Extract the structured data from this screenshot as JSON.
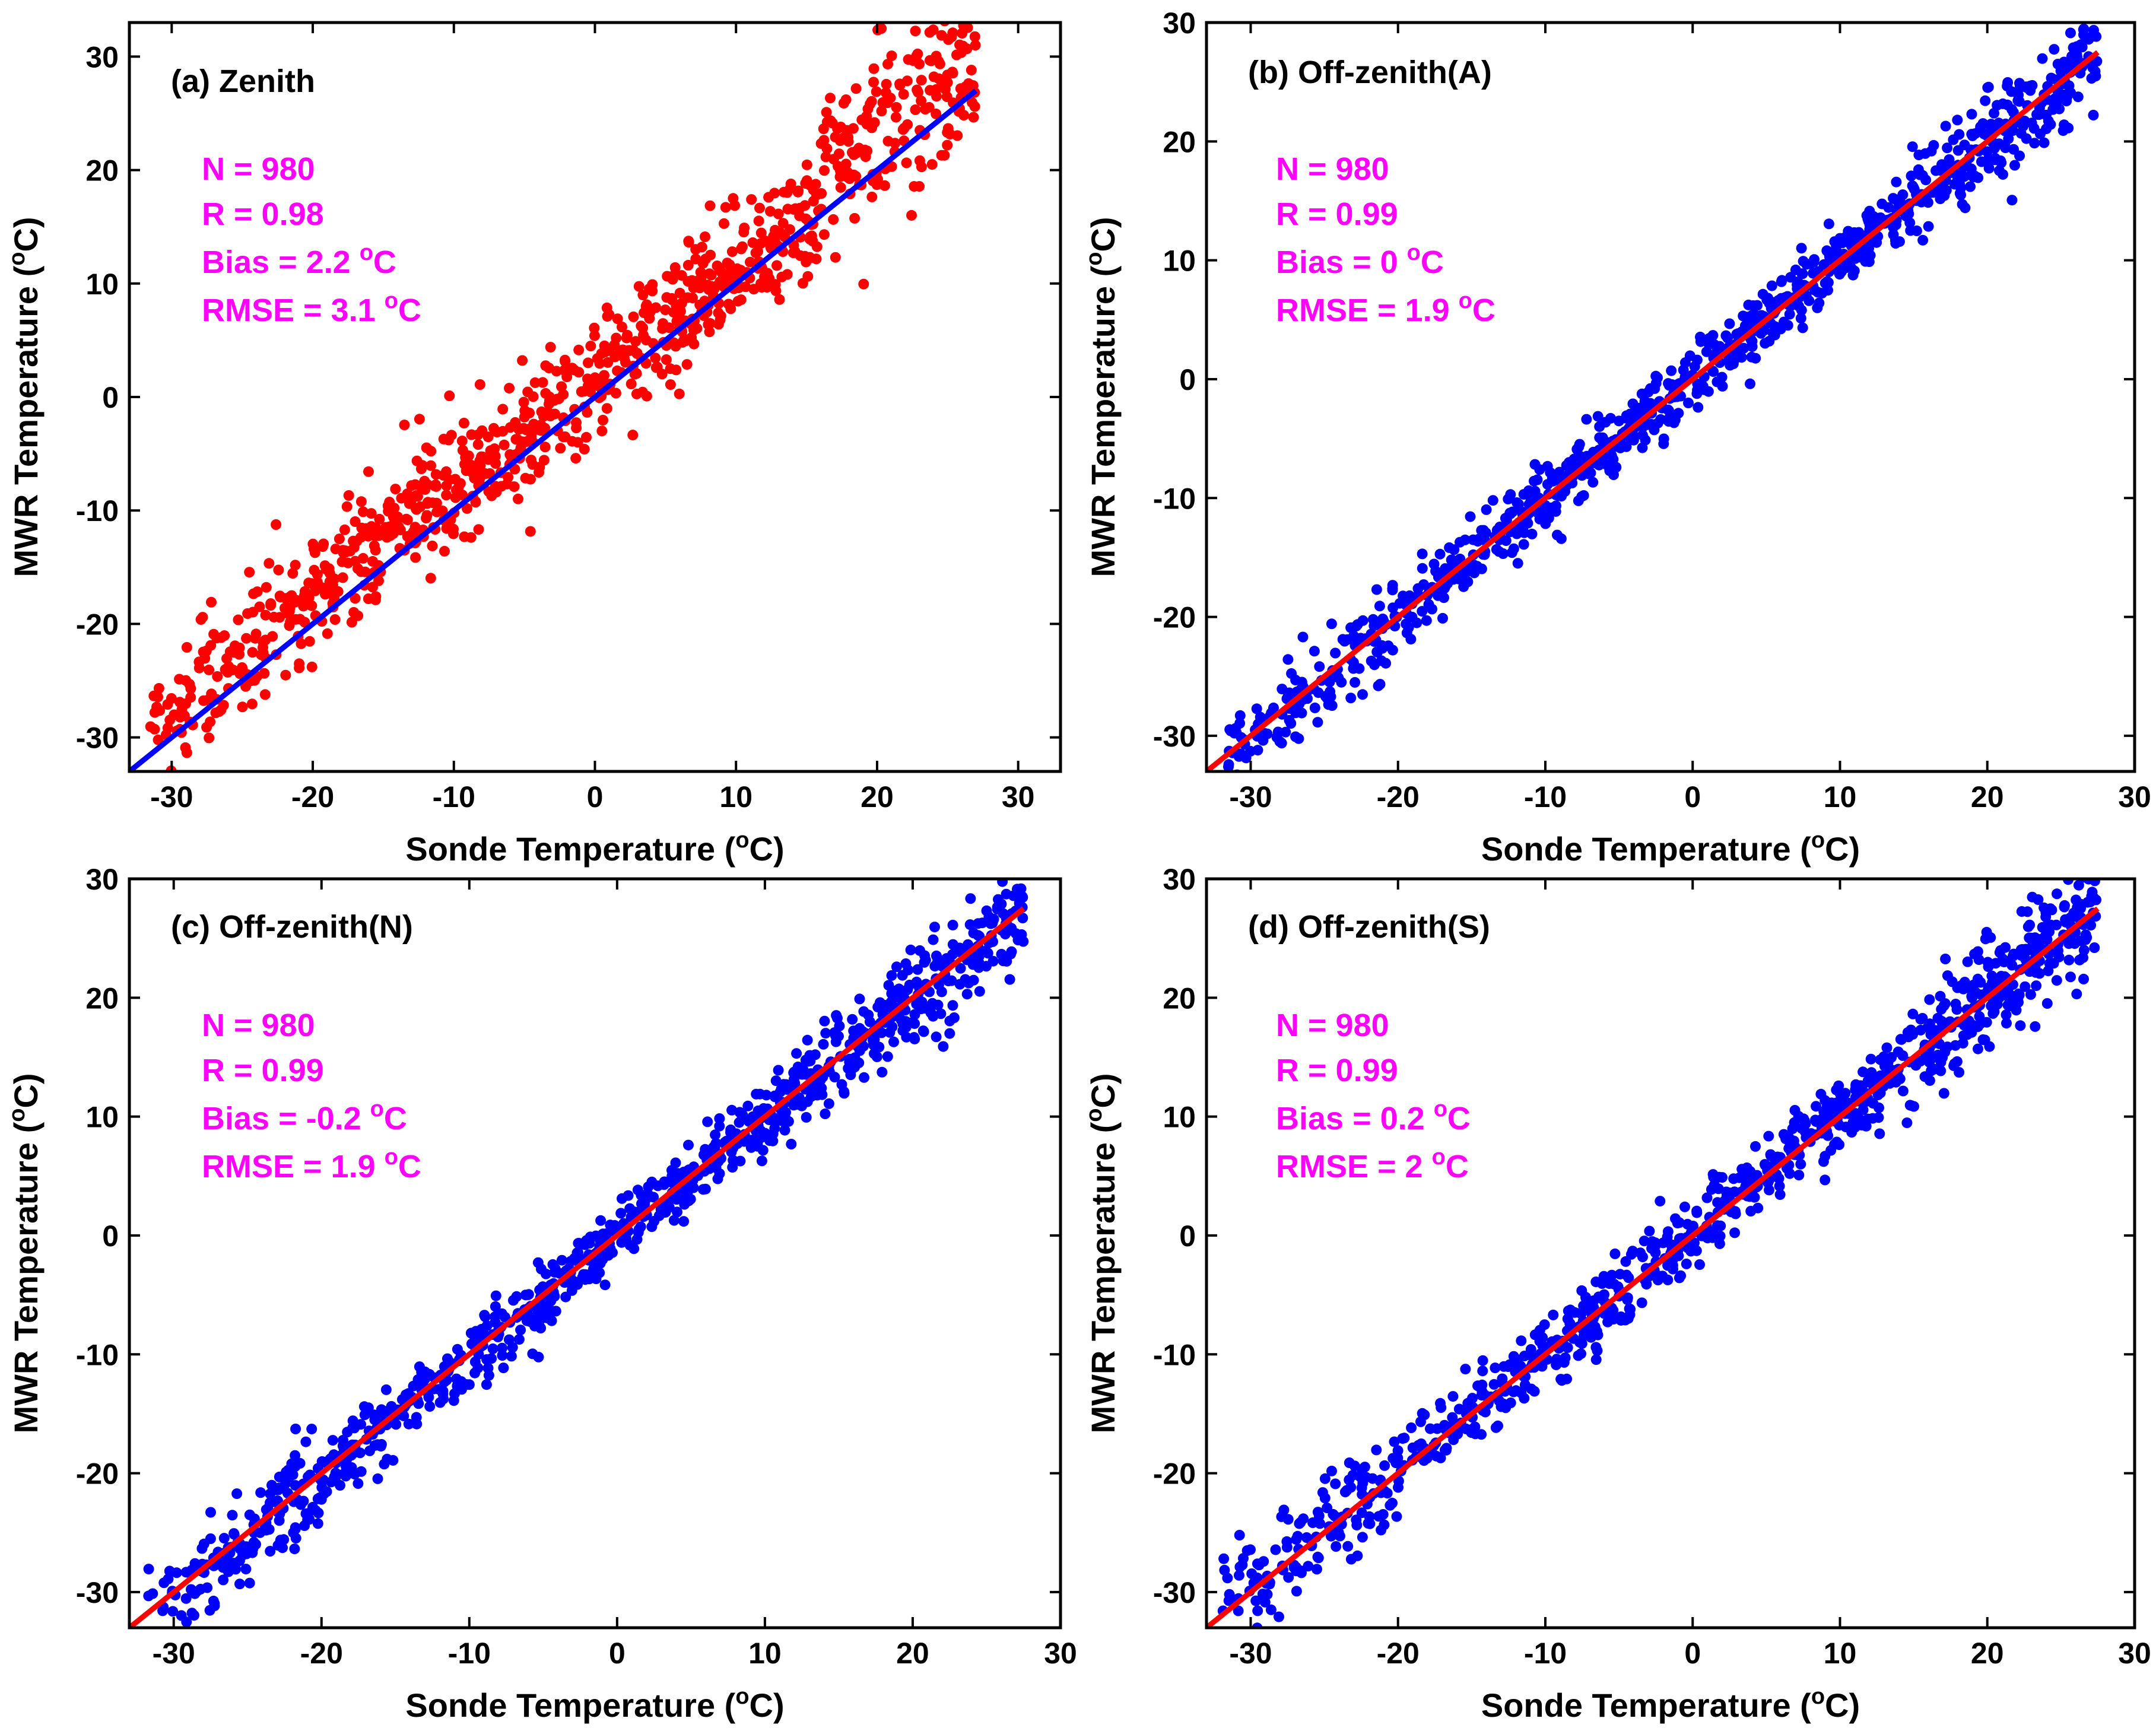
{
  "colors": {
    "red": "#ff0000",
    "blue": "#0000ff",
    "magenta": "#ff00ff",
    "axis": "#000000"
  },
  "chart_data": [
    {
      "type": "scatter",
      "panel": "a",
      "title": "(a) Zenith",
      "xlabel": "Sonde Temperature (",
      "ylabel": "MWR Temperature (",
      "unit_sup": "o",
      "unit_tail": "C)",
      "xlim": [
        -33,
        33
      ],
      "ylim": [
        -33,
        33
      ],
      "xticks": [
        -30,
        -20,
        -10,
        0,
        10,
        20,
        30
      ],
      "yticks": [
        -30,
        -20,
        -10,
        0,
        10,
        20,
        30
      ],
      "point_color": "#ff0000",
      "line_color": "#0000ff",
      "fit_line": {
        "x": [
          -33,
          27
        ],
        "y": [
          -33,
          27
        ]
      },
      "stats": {
        "n": "N = 980",
        "r": "R = 0.98",
        "bias": "Bias = 2.2 ",
        "rmse": "RMSE = 3.1 "
      },
      "scatter_model": {
        "x_min": -31.5,
        "x_max": 27,
        "bias": 2.2,
        "spread": 3.1,
        "points": 980
      }
    },
    {
      "type": "scatter",
      "panel": "b",
      "title": "(b) Off-zenith(A)",
      "xlabel": "Sonde Temperature (",
      "ylabel": "MWR Temperature (",
      "unit_sup": "o",
      "unit_tail": "C)",
      "xlim": [
        -33,
        30
      ],
      "ylim": [
        -33,
        30
      ],
      "xticks": [
        -30,
        -20,
        -10,
        0,
        10,
        20,
        30
      ],
      "yticks": [
        -30,
        -20,
        -10,
        0,
        10,
        20,
        30
      ],
      "point_color": "#0000ff",
      "line_color": "#ff0000",
      "fit_line": {
        "x": [
          -33,
          27.5
        ],
        "y": [
          -33,
          27.5
        ]
      },
      "stats": {
        "n": "N = 980",
        "r": "R = 0.99",
        "bias": "Bias = 0 ",
        "rmse": "RMSE = 1.9 "
      },
      "scatter_model": {
        "x_min": -32,
        "x_max": 27.5,
        "bias": 0,
        "spread": 1.9,
        "points": 980
      }
    },
    {
      "type": "scatter",
      "panel": "c",
      "title": "(c) Off-zenith(N)",
      "xlabel": "Sonde Temperature (",
      "ylabel": "MWR Temperature (",
      "unit_sup": "o",
      "unit_tail": "C)",
      "xlim": [
        -33,
        30
      ],
      "ylim": [
        -33,
        30
      ],
      "xticks": [
        -30,
        -20,
        -10,
        0,
        10,
        20,
        30
      ],
      "yticks": [
        -30,
        -20,
        -10,
        0,
        10,
        20,
        30
      ],
      "point_color": "#0000ff",
      "line_color": "#ff0000",
      "fit_line": {
        "x": [
          -33,
          27.5
        ],
        "y": [
          -33,
          27.5
        ]
      },
      "stats": {
        "n": "N = 980",
        "r": "R = 0.99",
        "bias": "Bias = -0.2 ",
        "rmse": "RMSE = 1.9 "
      },
      "scatter_model": {
        "x_min": -32,
        "x_max": 27.5,
        "bias": -0.2,
        "spread": 1.9,
        "points": 980
      }
    },
    {
      "type": "scatter",
      "panel": "d",
      "title": "(d) Off-zenith(S)",
      "xlabel": "Sonde Temperature (",
      "ylabel": "MWR Temperature (",
      "unit_sup": "o",
      "unit_tail": "C)",
      "xlim": [
        -33,
        30
      ],
      "ylim": [
        -33,
        30
      ],
      "xticks": [
        -30,
        -20,
        -10,
        0,
        10,
        20,
        30
      ],
      "yticks": [
        -30,
        -20,
        -10,
        0,
        10,
        20,
        30
      ],
      "point_color": "#0000ff",
      "line_color": "#ff0000",
      "fit_line": {
        "x": [
          -33,
          27.5
        ],
        "y": [
          -33,
          27.5
        ]
      },
      "stats": {
        "n": "N = 980",
        "r": "R = 0.99",
        "bias": "Bias = 0.2 ",
        "rmse": "RMSE = 2 "
      },
      "scatter_model": {
        "x_min": -32,
        "x_max": 27.5,
        "bias": 0.2,
        "spread": 2.0,
        "points": 980
      }
    }
  ]
}
